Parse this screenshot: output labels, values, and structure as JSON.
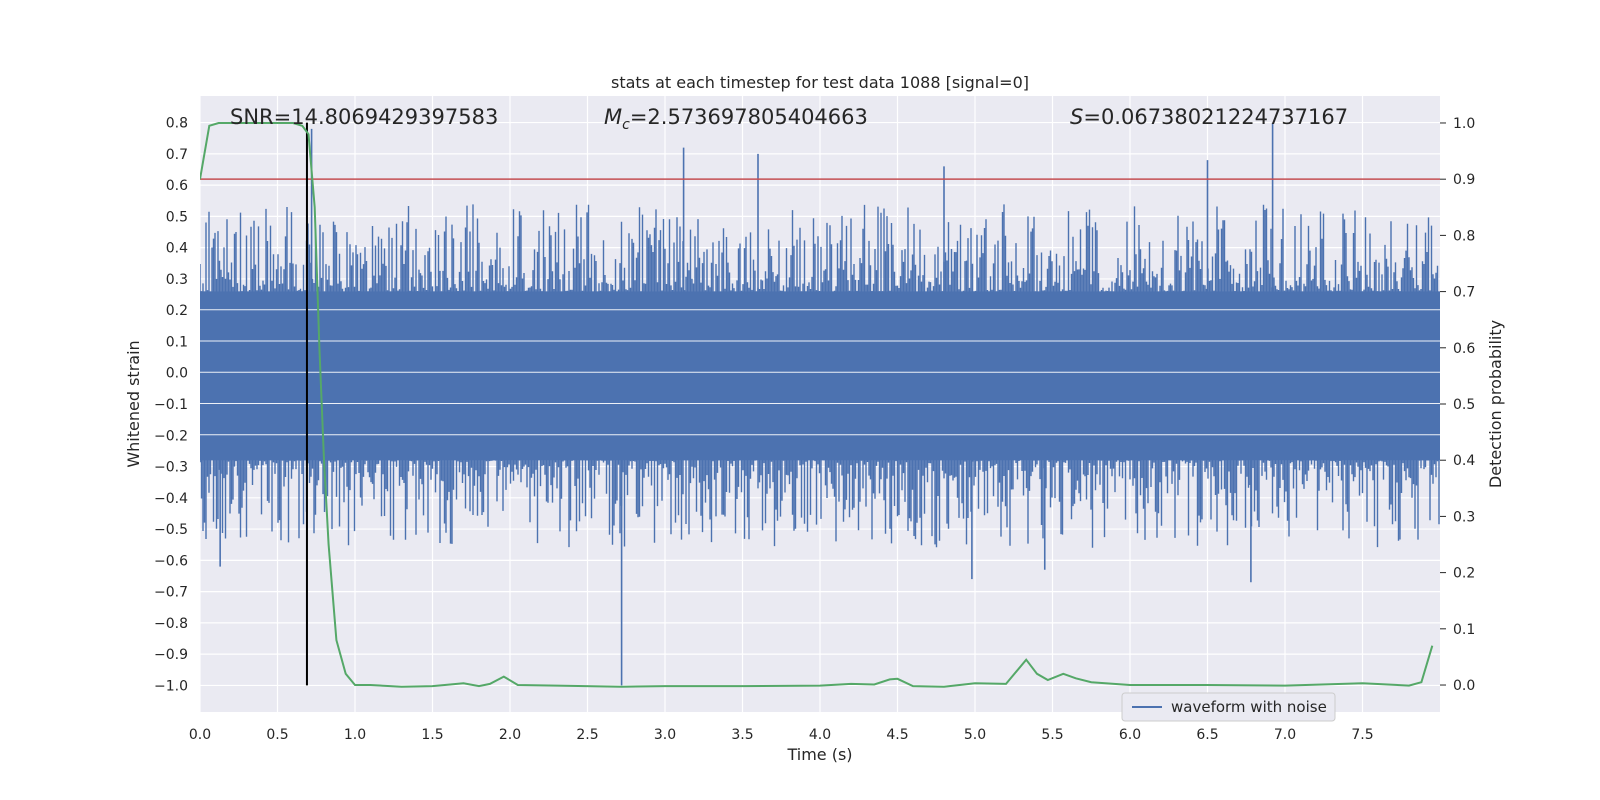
{
  "chart_data": {
    "type": "line",
    "title": "stats at each timestep for test data 1088 [signal=0]",
    "xlabel": "Time (s)",
    "ylabel": "Whitened strain",
    "y2label": "Detection probability",
    "xlim": [
      0.0,
      8.0
    ],
    "ylim": [
      -1.085,
      0.885
    ],
    "y2lim": [
      -0.048,
      1.048
    ],
    "xticks": [
      "0.0",
      "0.5",
      "1.0",
      "1.5",
      "2.0",
      "2.5",
      "3.0",
      "3.5",
      "4.0",
      "4.5",
      "5.0",
      "5.5",
      "6.0",
      "6.5",
      "7.0",
      "7.5"
    ],
    "xtick_values": [
      0.0,
      0.5,
      1.0,
      1.5,
      2.0,
      2.5,
      3.0,
      3.5,
      4.0,
      4.5,
      5.0,
      5.5,
      6.0,
      6.5,
      7.0,
      7.5
    ],
    "yticks": [
      "0.8",
      "0.7",
      "0.6",
      "0.5",
      "0.4",
      "0.3",
      "0.2",
      "0.1",
      "0.0",
      "−0.1",
      "−0.2",
      "−0.3",
      "−0.4",
      "−0.5",
      "−0.6",
      "−0.7",
      "−0.8",
      "−0.9",
      "−1.0"
    ],
    "ytick_values": [
      0.8,
      0.7,
      0.6,
      0.5,
      0.4,
      0.3,
      0.2,
      0.1,
      0.0,
      -0.1,
      -0.2,
      -0.3,
      -0.4,
      -0.5,
      -0.6,
      -0.7,
      -0.8,
      -0.9,
      -1.0
    ],
    "y2ticks": [
      "1.0",
      "0.9",
      "0.8",
      "0.7",
      "0.6",
      "0.5",
      "0.4",
      "0.3",
      "0.2",
      "0.1",
      "0.0"
    ],
    "y2tick_values": [
      1.0,
      0.9,
      0.8,
      0.7,
      0.6,
      0.5,
      0.4,
      0.3,
      0.2,
      0.1,
      0.0
    ],
    "grid": true,
    "legend_position": "lower-right",
    "annotations": {
      "snr": "SNR=14.8069429397583",
      "mc_symbol": "M",
      "mc_sub": "c",
      "mc_value": "=2.573697805404663",
      "s_symbol": "S",
      "s_value": "=0.06738021224737167"
    },
    "series": [
      {
        "name": "waveform with noise",
        "color": "#4c72b0",
        "axis": "left",
        "band_min": -0.28,
        "band_max": 0.26,
        "noise_peaks": [
          {
            "x": 0.72,
            "y": 0.78
          },
          {
            "x": 3.12,
            "y": 0.72
          },
          {
            "x": 3.6,
            "y": 0.7
          },
          {
            "x": 6.92,
            "y": 0.8
          },
          {
            "x": 6.5,
            "y": 0.68
          },
          {
            "x": 4.8,
            "y": 0.66
          },
          {
            "x": 2.72,
            "y": -1.0
          },
          {
            "x": 0.13,
            "y": -0.62
          },
          {
            "x": 5.45,
            "y": -0.63
          },
          {
            "x": 6.78,
            "y": -0.67
          },
          {
            "x": 4.98,
            "y": -0.66
          }
        ]
      },
      {
        "name": "detection probability",
        "color": "#55a868",
        "axis": "right",
        "x": [
          0.0,
          0.06,
          0.12,
          0.2,
          0.3,
          0.4,
          0.5,
          0.6,
          0.66,
          0.7,
          0.74,
          0.77,
          0.8,
          0.83,
          0.88,
          0.94,
          1.0,
          1.1,
          1.3,
          1.5,
          1.7,
          1.8,
          1.87,
          1.96,
          2.05,
          2.3,
          2.72,
          3.0,
          3.5,
          4.0,
          4.2,
          4.35,
          4.45,
          4.5,
          4.6,
          4.8,
          5.0,
          5.2,
          5.33,
          5.4,
          5.47,
          5.57,
          5.65,
          5.75,
          6.0,
          6.5,
          7.0,
          7.5,
          7.8,
          7.88,
          7.95
        ],
        "y": [
          0.9,
          0.995,
          1.0,
          1.0,
          1.0,
          1.0,
          1.0,
          1.0,
          0.995,
          0.98,
          0.85,
          0.6,
          0.4,
          0.25,
          0.08,
          0.02,
          0.0,
          0.0,
          -0.003,
          -0.002,
          0.003,
          -0.002,
          0.002,
          0.015,
          0.0,
          -0.001,
          -0.003,
          -0.002,
          -0.002,
          -0.001,
          0.002,
          0.001,
          0.01,
          0.011,
          -0.002,
          -0.003,
          0.003,
          0.002,
          0.045,
          0.02,
          0.009,
          0.02,
          0.012,
          0.005,
          0.0,
          0.0,
          -0.001,
          0.003,
          -0.001,
          0.005,
          0.07
        ]
      },
      {
        "name": "threshold",
        "color": "#c44e52",
        "axis": "right",
        "value": 0.9
      },
      {
        "name": "peak time",
        "color": "#000000",
        "axis": "left",
        "x": 0.69,
        "y_from": -1.0,
        "y_to": 0.8
      }
    ]
  }
}
